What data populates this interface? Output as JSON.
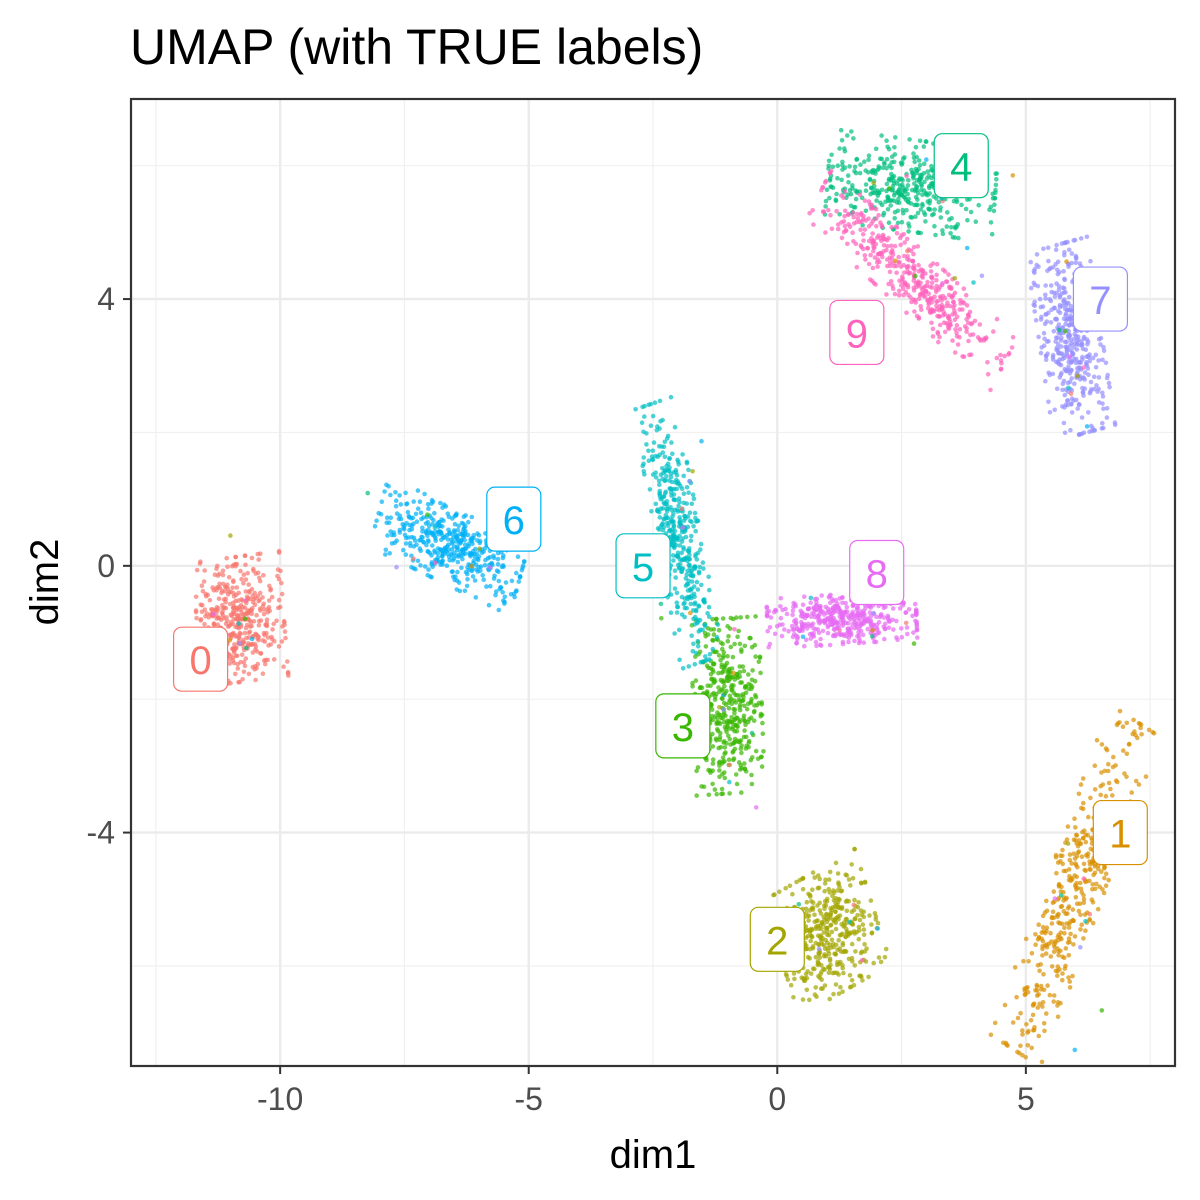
{
  "chart_data": {
    "type": "scatter",
    "title": "UMAP (with TRUE labels)",
    "xlabel": "dim1",
    "ylabel": "dim2",
    "xlim": [
      -13,
      8
    ],
    "ylim": [
      -7.5,
      7
    ],
    "x_ticks": [
      -10,
      -5,
      0,
      5
    ],
    "x_tick_labels": [
      "-10",
      "-5",
      "0",
      "5"
    ],
    "y_ticks": [
      -4,
      0,
      4
    ],
    "y_tick_labels": [
      "-4",
      "0",
      "4"
    ],
    "grid": true,
    "theme": "bw",
    "legend": "none",
    "point_opacity": 0.7,
    "clusters": [
      {
        "label": "0",
        "color": "#F8766D",
        "center": [
          -10.8,
          -0.8
        ],
        "spread": [
          0.7,
          0.75
        ],
        "tilt": 0.1,
        "label_pos": [
          -11.6,
          -1.4
        ]
      },
      {
        "label": "1",
        "color": "#D89000",
        "center": [
          6.0,
          -4.8
        ],
        "spread": [
          0.45,
          2.2
        ],
        "tilt": -0.45,
        "label_pos": [
          6.9,
          -4.0
        ]
      },
      {
        "label": "2",
        "color": "#A3A500",
        "center": [
          1.0,
          -5.5
        ],
        "spread": [
          0.8,
          0.75
        ],
        "tilt": 0.4,
        "label_pos": [
          0.0,
          -5.6
        ]
      },
      {
        "label": "3",
        "color": "#39B600",
        "center": [
          -1.0,
          -2.1
        ],
        "spread": [
          0.55,
          1.05
        ],
        "tilt": 0.05,
        "label_pos": [
          -1.9,
          -2.4
        ]
      },
      {
        "label": "4",
        "color": "#00BF7D",
        "center": [
          2.7,
          5.7
        ],
        "spread": [
          1.35,
          0.55
        ],
        "tilt": -0.1,
        "label_pos": [
          3.7,
          6.0
        ]
      },
      {
        "label": "5",
        "color": "#00BFC4",
        "center": [
          -2.0,
          0.5
        ],
        "spread": [
          0.35,
          1.6
        ],
        "tilt": 0.25,
        "label_pos": [
          -2.7,
          0.0
        ]
      },
      {
        "label": "6",
        "color": "#00B0F6",
        "center": [
          -6.6,
          0.3
        ],
        "spread": [
          1.2,
          0.45
        ],
        "tilt": -0.35,
        "label_pos": [
          -5.3,
          0.7
        ]
      },
      {
        "label": "7",
        "color": "#9590FF",
        "center": [
          5.9,
          3.4
        ],
        "spread": [
          0.5,
          1.15
        ],
        "tilt": 0.2,
        "label_pos": [
          6.5,
          4.0
        ]
      },
      {
        "label": "8",
        "color": "#E76BF3",
        "center": [
          1.3,
          -0.8
        ],
        "spread": [
          1.2,
          0.3
        ],
        "tilt": 0.05,
        "label_pos": [
          2.0,
          -0.1
        ]
      },
      {
        "label": "9",
        "color": "#FF62BC",
        "center": [
          2.7,
          4.3
        ],
        "spread": [
          1.8,
          0.38
        ],
        "tilt": -0.6,
        "label_pos": [
          1.6,
          3.5
        ]
      }
    ]
  }
}
